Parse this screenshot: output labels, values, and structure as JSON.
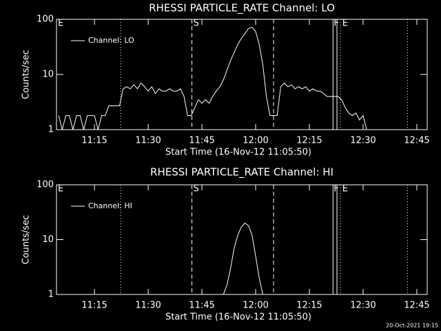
{
  "chart_data": [
    {
      "type": "line",
      "title": "RHESSI PARTICLE_RATE Channel: LO",
      "xlabel": "Start Time (16-Nov-12 11:05:50)",
      "ylabel": "Counts/sec",
      "x": [
        665,
        666,
        667,
        668,
        669,
        670,
        671,
        672,
        673,
        674,
        675,
        676,
        677,
        678,
        679,
        680,
        681,
        682,
        683,
        684,
        685,
        686,
        687,
        688,
        689,
        690,
        691,
        692,
        693,
        694,
        695,
        696,
        697,
        698,
        699,
        700,
        701,
        702,
        703,
        704,
        705,
        706,
        707,
        708,
        709,
        710,
        711,
        712,
        713,
        714,
        715,
        716,
        717,
        718,
        719,
        720,
        721,
        722,
        723,
        724,
        725,
        726,
        727,
        728,
        729,
        730,
        731,
        732,
        733,
        734,
        735,
        736,
        737,
        738,
        739,
        740,
        741,
        742,
        743,
        744,
        745,
        746,
        747,
        748,
        749,
        750,
        751,
        752,
        753,
        754,
        755
      ],
      "series": [
        {
          "name": "Channel: LO",
          "color": "#ffffff",
          "values": [
            1.8,
            1,
            1.8,
            1.8,
            1,
            1.8,
            1.8,
            1,
            1.8,
            1.8,
            1.8,
            1,
            1.8,
            1.8,
            2.7,
            2.7,
            2.7,
            2.7,
            5.5,
            6,
            5.5,
            6.5,
            5.5,
            7,
            6,
            5,
            6,
            4.5,
            5.5,
            5,
            5,
            5.5,
            5,
            5,
            5.5,
            4,
            1.8,
            1.8,
            2.5,
            3.5,
            3,
            3.5,
            3,
            4,
            5,
            6,
            8,
            12,
            18,
            25,
            35,
            45,
            55,
            68,
            72,
            60,
            35,
            15,
            4,
            1.8,
            1.8,
            1.8,
            6,
            7,
            6,
            6.5,
            5.5,
            6,
            5.5,
            6,
            5,
            5.5,
            5,
            5,
            4.5,
            4,
            4,
            4,
            4,
            3.5,
            2.5,
            2,
            1.8,
            2,
            1.5,
            1.8,
            1,
            1,
            1,
            1,
            1
          ]
        }
      ],
      "xlim": [
        664.4,
        767.9
      ],
      "xticks": [
        {
          "value": 675,
          "label": "11:15"
        },
        {
          "value": 690,
          "label": "11:30"
        },
        {
          "value": 705,
          "label": "11:45"
        },
        {
          "value": 720,
          "label": "12:00"
        },
        {
          "value": 735,
          "label": "12:15"
        },
        {
          "value": 750,
          "label": "12:30"
        },
        {
          "value": 765,
          "label": "12:45"
        }
      ],
      "ylim": [
        1,
        100
      ],
      "yticks": [
        1,
        10,
        100
      ],
      "log_scale": true,
      "legend": "upper left",
      "vlines": [
        {
          "x": 682.3,
          "style": "dotted"
        },
        {
          "x": 702.2,
          "style": "dashed"
        },
        {
          "x": 725,
          "style": "dashed"
        },
        {
          "x": 741.6,
          "style": "solid"
        },
        {
          "x": 742.7,
          "style": "solid"
        },
        {
          "x": 743.7,
          "style": "dotted"
        },
        {
          "x": 762.4,
          "style": "dotted"
        }
      ],
      "annotations": [
        {
          "text": "E",
          "x": 664.6
        },
        {
          "text": "S",
          "x": 702.4
        },
        {
          "text": "F",
          "x": 741.6
        },
        {
          "text": "E",
          "x": 744
        }
      ]
    },
    {
      "type": "line",
      "title": "RHESSI PARTICLE_RATE Channel: HI",
      "xlabel": "Start Time (16-Nov-12 11:05:50)",
      "ylabel": "Counts/sec",
      "x": [
        711,
        712,
        713,
        714,
        715,
        716,
        717,
        718,
        719,
        720,
        721,
        722
      ],
      "series": [
        {
          "name": "Channel: HI",
          "color": "#ffffff",
          "values": [
            1,
            1.5,
            3,
            7,
            12,
            17,
            20,
            18,
            12,
            5,
            2,
            1
          ]
        }
      ],
      "xlim": [
        664.4,
        767.9
      ],
      "xticks": [
        {
          "value": 675,
          "label": "11:15"
        },
        {
          "value": 690,
          "label": "11:30"
        },
        {
          "value": 705,
          "label": "11:45"
        },
        {
          "value": 720,
          "label": "12:00"
        },
        {
          "value": 735,
          "label": "12:15"
        },
        {
          "value": 750,
          "label": "12:30"
        },
        {
          "value": 765,
          "label": "12:45"
        }
      ],
      "ylim": [
        1,
        100
      ],
      "yticks": [
        1,
        10,
        100
      ],
      "log_scale": true,
      "legend": "upper left",
      "vlines": [
        {
          "x": 682.3,
          "style": "dotted"
        },
        {
          "x": 702.2,
          "style": "dashed"
        },
        {
          "x": 725,
          "style": "dashed"
        },
        {
          "x": 741.6,
          "style": "solid"
        },
        {
          "x": 742.7,
          "style": "solid"
        },
        {
          "x": 743.7,
          "style": "dotted"
        },
        {
          "x": 762.4,
          "style": "dotted"
        }
      ],
      "annotations": [
        {
          "text": "E",
          "x": 664.6
        },
        {
          "text": "S",
          "x": 702.4
        },
        {
          "text": "F",
          "x": 741.6
        },
        {
          "text": "E",
          "x": 744
        }
      ]
    }
  ],
  "timestamp": "20-Oct-2021 19:15"
}
